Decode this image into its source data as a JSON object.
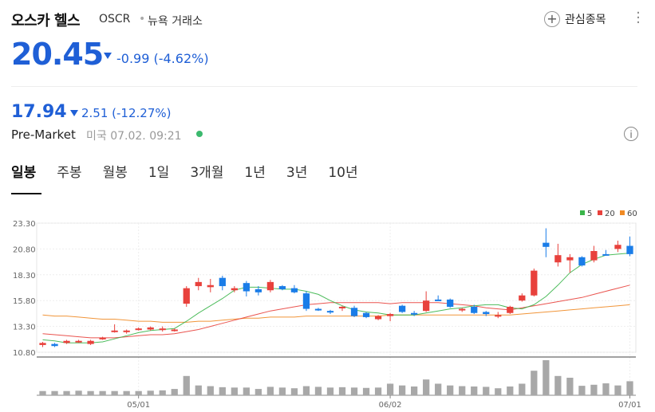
{
  "header": {
    "name": "오스카 헬스",
    "ticker": "OSCR",
    "separator": "•",
    "exchange": "뉴욕 거래소",
    "watchlist_label": "관심종목"
  },
  "quote": {
    "price": "20.45",
    "change": "-0.99 (-4.62%)",
    "direction": "down"
  },
  "premarket": {
    "price": "17.94",
    "change": "2.51 (-12.27%)",
    "label": "Pre-Market",
    "time": "미국 07.02. 09:21"
  },
  "tabs": [
    "일봉",
    "주봉",
    "월봉",
    "1일",
    "3개월",
    "1년",
    "3년",
    "10년"
  ],
  "active_tab": "일봉",
  "colors": {
    "up": "#e8413c",
    "down": "#1a7de8",
    "accent": "#1f5fd6",
    "ma5": "#3ab54a",
    "ma20": "#e8413c",
    "ma60": "#f08a24",
    "volume": "#a8a8a8"
  },
  "chart_data": {
    "type": "candlestick",
    "ylim": [
      10.8,
      23.3
    ],
    "y_ticks": [
      "23.30",
      "20.80",
      "18.30",
      "15.80",
      "13.30",
      "10.80"
    ],
    "x_labels": [
      {
        "index": 8,
        "label": "05/01"
      },
      {
        "index": 29,
        "label": "06/02"
      },
      {
        "index": 49,
        "label": "07/01"
      }
    ],
    "legend": [
      {
        "name": "5",
        "color": "#3ab54a"
      },
      {
        "name": "20",
        "color": "#e8413c"
      },
      {
        "name": "60",
        "color": "#f08a24"
      }
    ],
    "candles": [
      [
        11.5,
        11.8,
        11.3,
        11.7
      ],
      [
        11.6,
        11.7,
        11.3,
        11.4
      ],
      [
        11.7,
        12.0,
        11.6,
        11.9
      ],
      [
        11.8,
        12.0,
        11.7,
        11.9
      ],
      [
        11.6,
        12.0,
        11.5,
        11.9
      ],
      [
        12.1,
        12.3,
        12.0,
        12.2
      ],
      [
        12.8,
        13.5,
        12.7,
        12.9
      ],
      [
        12.8,
        13.0,
        12.6,
        12.9
      ],
      [
        13.0,
        13.2,
        12.9,
        13.1
      ],
      [
        13.0,
        13.3,
        12.9,
        13.2
      ],
      [
        13.0,
        13.3,
        12.8,
        13.1
      ],
      [
        12.9,
        13.1,
        12.8,
        13.0
      ],
      [
        15.5,
        17.2,
        15.2,
        17.0
      ],
      [
        17.2,
        18.0,
        16.8,
        17.6
      ],
      [
        17.1,
        17.9,
        16.6,
        17.3
      ],
      [
        18.0,
        18.2,
        16.8,
        17.2
      ],
      [
        16.8,
        17.2,
        16.6,
        17.0
      ],
      [
        17.5,
        17.7,
        16.2,
        16.7
      ],
      [
        16.9,
        17.2,
        16.3,
        16.6
      ],
      [
        16.8,
        17.8,
        16.6,
        17.6
      ],
      [
        17.2,
        17.3,
        16.8,
        16.9
      ],
      [
        17.0,
        17.3,
        16.5,
        16.6
      ],
      [
        16.5,
        16.7,
        14.8,
        15.0
      ],
      [
        15.0,
        15.1,
        14.8,
        14.9
      ],
      [
        14.8,
        14.9,
        14.5,
        14.7
      ],
      [
        15.1,
        15.3,
        14.8,
        15.2
      ],
      [
        15.1,
        15.3,
        14.2,
        14.3
      ],
      [
        14.6,
        14.7,
        14.1,
        14.2
      ],
      [
        14.0,
        14.4,
        13.9,
        14.3
      ],
      [
        14.3,
        14.6,
        13.8,
        14.5
      ],
      [
        15.3,
        15.4,
        14.6,
        14.7
      ],
      [
        14.6,
        14.8,
        14.3,
        14.5
      ],
      [
        14.8,
        16.7,
        14.7,
        15.8
      ],
      [
        15.9,
        16.3,
        15.8,
        15.8
      ],
      [
        15.9,
        16.0,
        15.1,
        15.2
      ],
      [
        14.9,
        15.1,
        14.7,
        15.0
      ],
      [
        15.2,
        15.4,
        14.5,
        14.6
      ],
      [
        14.7,
        14.8,
        14.3,
        14.5
      ],
      [
        14.3,
        14.7,
        14.1,
        14.4
      ],
      [
        14.6,
        15.3,
        14.5,
        15.2
      ],
      [
        15.8,
        16.5,
        15.7,
        16.3
      ],
      [
        16.3,
        18.9,
        16.2,
        18.7
      ],
      [
        21.4,
        22.8,
        20.0,
        21.0
      ],
      [
        19.5,
        21.3,
        19.1,
        20.2
      ],
      [
        19.7,
        20.3,
        18.5,
        20.0
      ],
      [
        20.0,
        20.1,
        19.1,
        19.2
      ],
      [
        19.7,
        21.1,
        19.5,
        20.6
      ],
      [
        20.3,
        20.7,
        20.2,
        20.2
      ],
      [
        20.8,
        21.6,
        20.5,
        21.2
      ],
      [
        21.1,
        22.0,
        20.1,
        20.3
      ]
    ],
    "volume": [
      12,
      12,
      12,
      13,
      12,
      12,
      12,
      12,
      12,
      13,
      14,
      18,
      55,
      28,
      26,
      23,
      22,
      22,
      18,
      24,
      22,
      20,
      26,
      24,
      22,
      23,
      22,
      21,
      22,
      33,
      28,
      25,
      45,
      33,
      28,
      26,
      25,
      24,
      20,
      25,
      33,
      70,
      100,
      55,
      50,
      27,
      30,
      34,
      28,
      40
    ],
    "ma5": [
      12.0,
      11.9,
      11.7,
      11.7,
      11.7,
      11.8,
      12.1,
      12.4,
      12.7,
      12.9,
      13.0,
      13.1,
      13.8,
      14.6,
      15.3,
      16.0,
      16.8,
      17.1,
      17.1,
      17.0,
      16.9,
      16.9,
      16.7,
      16.4,
      15.8,
      15.3,
      14.9,
      14.7,
      14.6,
      14.4,
      14.4,
      14.4,
      14.6,
      14.8,
      15.0,
      15.1,
      15.3,
      15.4,
      15.4,
      15.1,
      15.0,
      15.4,
      16.2,
      17.3,
      18.5,
      19.3,
      19.8,
      20.2,
      20.3,
      20.4
    ],
    "ma20": [
      12.6,
      12.5,
      12.4,
      12.3,
      12.2,
      12.2,
      12.2,
      12.3,
      12.4,
      12.5,
      12.5,
      12.6,
      12.8,
      13.0,
      13.3,
      13.6,
      13.9,
      14.2,
      14.5,
      14.8,
      15.0,
      15.2,
      15.4,
      15.5,
      15.6,
      15.6,
      15.6,
      15.6,
      15.6,
      15.5,
      15.6,
      15.6,
      15.6,
      15.6,
      15.5,
      15.4,
      15.3,
      15.1,
      15.0,
      14.9,
      15.1,
      15.3,
      15.5,
      15.7,
      15.9,
      16.1,
      16.4,
      16.7,
      17.0,
      17.3
    ],
    "ma60": [
      14.4,
      14.3,
      14.3,
      14.2,
      14.1,
      14.0,
      14.0,
      13.9,
      13.8,
      13.8,
      13.7,
      13.7,
      13.7,
      13.8,
      13.8,
      13.9,
      14.0,
      14.1,
      14.1,
      14.2,
      14.2,
      14.2,
      14.3,
      14.3,
      14.3,
      14.3,
      14.3,
      14.3,
      14.3,
      14.4,
      14.4,
      14.4,
      14.4,
      14.4,
      14.4,
      14.4,
      14.4,
      14.4,
      14.4,
      14.4,
      14.5,
      14.6,
      14.7,
      14.8,
      14.9,
      15.0,
      15.1,
      15.2,
      15.3,
      15.4
    ]
  }
}
